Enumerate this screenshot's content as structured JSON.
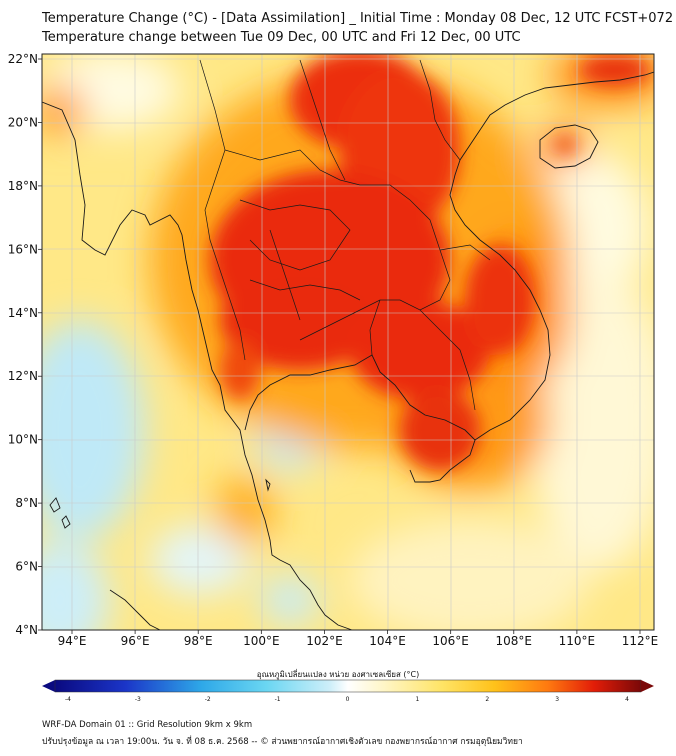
{
  "title_line1": "Temperature Change (°C) - [Data Assimilation] _ Initial Time : Monday 08 Dec, 12 UTC FCST+072",
  "title_line2": "Temperature change between Tue 09 Dec, 00 UTC and Fri 12 Dec, 00 UTC",
  "lat_labels": [
    "22°N",
    "20°N",
    "18°N",
    "16°N",
    "14°N",
    "12°N",
    "10°N",
    "8°N",
    "6°N",
    "4°N"
  ],
  "lon_labels": [
    "94°E",
    "96°E",
    "98°E",
    "100°E",
    "102°E",
    "104°E",
    "106°E",
    "108°E",
    "110°E",
    "112°E"
  ],
  "colorbar": {
    "title": "อุณหภูมิเปลี่ยนแปลง หน่วย องศาเซลเซียส (°C)",
    "ticks": [
      "-4",
      "-3",
      "-2",
      "-1",
      "0",
      "1",
      "2",
      "3",
      "4"
    ],
    "min": -4,
    "max": 4
  },
  "footer_line1": "WRF-DA Domain 01 :: Grid Resolution 9km x 9km",
  "footer_line2": "ปรับปรุงข้อมูล ณ เวลา 19:00น. วัน จ. ที่ 08 ธ.ค. 2568 -- © ส่วนพยากรณ์อากาศเชิงตัวเลข กองพยากรณ์อากาศ กรมอุตุนิยมวิทยา"
}
